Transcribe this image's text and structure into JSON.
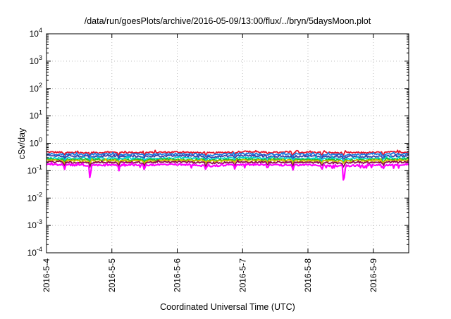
{
  "chart_data": {
    "type": "line",
    "title": "/data/run/goesPlots/archive/2016-05-09/13:00/flux/../bryn/5daysMoon.plot",
    "xlabel": "Coordinated Universal Time (UTC)",
    "ylabel": "cSv/day",
    "yscale": "log",
    "ylim": [
      0.0001,
      10000
    ],
    "y_ticks": [
      {
        "base": "10",
        "exp": "-4",
        "value": 0.0001
      },
      {
        "base": "10",
        "exp": "-3",
        "value": 0.001
      },
      {
        "base": "10",
        "exp": "-2",
        "value": 0.01
      },
      {
        "base": "10",
        "exp": "-1",
        "value": 0.1
      },
      {
        "base": "10",
        "exp": "0",
        "value": 1
      },
      {
        "base": "10",
        "exp": "1",
        "value": 10
      },
      {
        "base": "10",
        "exp": "2",
        "value": 100
      },
      {
        "base": "10",
        "exp": "3",
        "value": 1000
      },
      {
        "base": "10",
        "exp": "4",
        "value": 10000
      }
    ],
    "xlim": [
      "2016-05-04 00:00",
      "2016-05-09 13:00"
    ],
    "x_ticks": [
      "2016-5-4",
      "2016-5-5",
      "2016-5-6",
      "2016-5-7",
      "2016-5-8",
      "2016-5-9"
    ],
    "x_values": [
      "2016-05-04 00:00",
      "2016-05-04 12:00",
      "2016-05-05 00:00",
      "2016-05-05 12:00",
      "2016-05-06 00:00",
      "2016-05-06 12:00",
      "2016-05-07 00:00",
      "2016-05-07 12:00",
      "2016-05-08 00:00",
      "2016-05-08 12:00",
      "2016-05-09 00:00",
      "2016-05-09 13:00"
    ],
    "grid": true,
    "legend": "none",
    "series": [
      {
        "color": "#e8102a",
        "values": [
          0.48,
          0.45,
          0.47,
          0.46,
          0.48,
          0.44,
          0.5,
          0.46,
          0.47,
          0.45,
          0.46,
          0.48
        ]
      },
      {
        "color": "#1a7be0",
        "values": [
          0.41,
          0.39,
          0.4,
          0.39,
          0.41,
          0.38,
          0.42,
          0.39,
          0.4,
          0.38,
          0.39,
          0.41
        ]
      },
      {
        "color": "#3b3fa8",
        "values": [
          0.35,
          0.33,
          0.34,
          0.33,
          0.35,
          0.32,
          0.36,
          0.33,
          0.34,
          0.32,
          0.33,
          0.35
        ]
      },
      {
        "color": "#00d2d2",
        "values": [
          0.29,
          0.28,
          0.28,
          0.28,
          0.29,
          0.27,
          0.3,
          0.28,
          0.28,
          0.27,
          0.28,
          0.29
        ]
      },
      {
        "color": "#2cb82c",
        "values": [
          0.26,
          0.25,
          0.25,
          0.25,
          0.26,
          0.24,
          0.26,
          0.25,
          0.25,
          0.24,
          0.25,
          0.26
        ]
      },
      {
        "color": "#d4c200",
        "values": [
          0.24,
          0.23,
          0.23,
          0.23,
          0.24,
          0.22,
          0.24,
          0.23,
          0.23,
          0.22,
          0.23,
          0.24
        ]
      },
      {
        "color": "#8b0a50",
        "values": [
          0.21,
          0.2,
          0.2,
          0.2,
          0.21,
          0.19,
          0.21,
          0.2,
          0.2,
          0.19,
          0.2,
          0.21
        ]
      },
      {
        "color": "#ff00ff",
        "values": [
          0.17,
          0.16,
          0.16,
          0.16,
          0.17,
          0.15,
          0.17,
          0.16,
          0.16,
          0.15,
          0.16,
          0.17
        ]
      }
    ]
  }
}
